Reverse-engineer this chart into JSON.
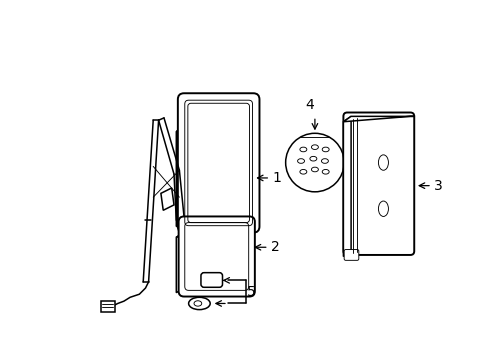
{
  "background_color": "#ffffff",
  "line_color": "#000000",
  "lw": 1.1,
  "lw_thin": 0.65,
  "lw_thick": 1.4,
  "figsize": [
    4.89,
    3.6
  ],
  "dpi": 100
}
